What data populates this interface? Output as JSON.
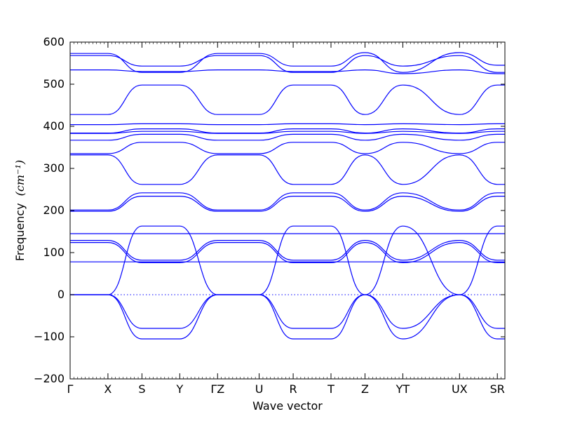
{
  "chart_data": {
    "type": "line",
    "title": "",
    "xlabel": "Wave vector",
    "ylabel": "Frequency",
    "ylabel_unit": "(cm⁻¹)",
    "ylim": [
      -200,
      600
    ],
    "yticks": [
      -200,
      -100,
      0,
      100,
      200,
      300,
      400,
      500,
      600
    ],
    "xlim": [
      0,
      11.5
    ],
    "xticks": [
      {
        "x": 0,
        "label": "Γ"
      },
      {
        "x": 1,
        "label": "X"
      },
      {
        "x": 1.9,
        "label": "S"
      },
      {
        "x": 2.9,
        "label": "Y"
      },
      {
        "x": 3.9,
        "label": "ΓZ"
      },
      {
        "x": 5.0,
        "label": "U"
      },
      {
        "x": 5.9,
        "label": "R"
      },
      {
        "x": 6.9,
        "label": "T"
      },
      {
        "x": 7.8,
        "label": "Z"
      },
      {
        "x": 8.8,
        "label": "YT"
      },
      {
        "x": 10.3,
        "label": "UX"
      },
      {
        "x": 11.3,
        "label": "SR"
      }
    ],
    "zero_line": 0,
    "color": "#0000ff",
    "series": [
      {
        "x": [
          0,
          1,
          1.9,
          2.9,
          3.9,
          5.0,
          5.9,
          6.9,
          7.8,
          8.8,
          10.3,
          11.3,
          11.5
        ],
        "values": [
          573,
          573,
          528,
          528,
          573,
          573,
          543,
          543,
          575,
          528,
          575,
          545,
          545
        ]
      },
      {
        "x": [
          0,
          1,
          1.9,
          2.9,
          3.9,
          5.0,
          5.9,
          6.9,
          7.8,
          8.8,
          10.3,
          11.3,
          11.5
        ],
        "values": [
          568,
          568,
          543,
          543,
          568,
          568,
          528,
          528,
          568,
          543,
          568,
          528,
          528
        ]
      },
      {
        "x": [
          0,
          1,
          1.9,
          2.9,
          3.9,
          5.0,
          5.9,
          6.9,
          7.8,
          8.8,
          10.3,
          11.3,
          11.5
        ],
        "values": [
          534,
          534,
          530,
          530,
          534,
          534,
          530,
          530,
          534,
          525,
          534,
          525,
          525
        ]
      },
      {
        "x": [
          0,
          1,
          1.9,
          2.9,
          3.9,
          5.0,
          5.9,
          6.9,
          7.8,
          8.8,
          10.3,
          11.3,
          11.5
        ],
        "values": [
          428,
          428,
          498,
          498,
          428,
          428,
          498,
          498,
          428,
          498,
          428,
          498,
          498
        ]
      },
      {
        "x": [
          0,
          1,
          1.9,
          2.9,
          3.9,
          5.0,
          5.9,
          6.9,
          7.8,
          8.8,
          10.3,
          11.3,
          11.5
        ],
        "values": [
          404,
          404,
          406,
          406,
          404,
          404,
          406,
          406,
          404,
          406,
          404,
          406,
          406
        ]
      },
      {
        "x": [
          0,
          1,
          1.9,
          2.9,
          3.9,
          5.0,
          5.9,
          6.9,
          7.8,
          8.8,
          10.3,
          11.3,
          11.5
        ],
        "values": [
          384,
          384,
          394,
          394,
          384,
          384,
          394,
          394,
          384,
          394,
          384,
          394,
          394
        ]
      },
      {
        "x": [
          0,
          1,
          1.9,
          2.9,
          3.9,
          5.0,
          5.9,
          6.9,
          7.8,
          8.8,
          10.3,
          11.3,
          11.5
        ],
        "values": [
          383,
          383,
          388,
          388,
          383,
          383,
          388,
          388,
          383,
          388,
          383,
          388,
          388
        ]
      },
      {
        "x": [
          0,
          1,
          1.9,
          2.9,
          3.9,
          5.0,
          5.9,
          6.9,
          7.8,
          8.8,
          10.3,
          11.3,
          11.5
        ],
        "values": [
          367,
          367,
          381,
          381,
          367,
          367,
          381,
          381,
          367,
          381,
          367,
          381,
          381
        ]
      },
      {
        "x": [
          0,
          1,
          1.9,
          2.9,
          3.9,
          5.0,
          5.9,
          6.9,
          7.8,
          8.8,
          10.3,
          11.3,
          11.5
        ],
        "values": [
          335,
          335,
          362,
          362,
          335,
          335,
          362,
          362,
          335,
          362,
          335,
          362,
          362
        ]
      },
      {
        "x": [
          0,
          1,
          1.9,
          2.9,
          3.9,
          5.0,
          5.9,
          6.9,
          7.8,
          8.8,
          10.3,
          11.3,
          11.5
        ],
        "values": [
          332,
          332,
          262,
          262,
          332,
          332,
          262,
          262,
          332,
          262,
          332,
          262,
          262
        ]
      },
      {
        "x": [
          0,
          1,
          1.9,
          2.9,
          3.9,
          5.0,
          5.9,
          6.9,
          7.8,
          8.8,
          10.3,
          11.3,
          11.5
        ],
        "values": [
          201,
          201,
          242,
          242,
          201,
          201,
          242,
          242,
          201,
          242,
          201,
          242,
          242
        ]
      },
      {
        "x": [
          0,
          1,
          1.9,
          2.9,
          3.9,
          5.0,
          5.9,
          6.9,
          7.8,
          8.8,
          10.3,
          11.3,
          11.5
        ],
        "values": [
          198,
          198,
          234,
          234,
          198,
          198,
          234,
          234,
          198,
          234,
          198,
          234,
          234
        ]
      },
      {
        "x": [
          0,
          1,
          1.9,
          2.9,
          3.9,
          5.0,
          5.9,
          6.9,
          7.8,
          8.8,
          10.3,
          11.3,
          11.5
        ],
        "values": [
          145,
          145,
          145,
          145,
          145,
          145,
          145,
          145,
          145,
          145,
          145,
          145,
          145
        ]
      },
      {
        "x": [
          0,
          1,
          1.9,
          2.9,
          3.9,
          5.0,
          5.9,
          6.9,
          7.8,
          8.8,
          10.3,
          11.3,
          11.5
        ],
        "values": [
          129,
          129,
          82,
          82,
          129,
          129,
          82,
          82,
          129,
          82,
          129,
          82,
          82
        ]
      },
      {
        "x": [
          0,
          1,
          1.9,
          2.9,
          3.9,
          5.0,
          5.9,
          6.9,
          7.8,
          8.8,
          10.3,
          11.3,
          11.5
        ],
        "values": [
          124,
          124,
          76,
          76,
          124,
          124,
          76,
          76,
          124,
          76,
          124,
          76,
          76
        ]
      },
      {
        "x": [
          0,
          1,
          1.9,
          2.9,
          3.9,
          5.0,
          5.9,
          6.9,
          7.8,
          8.8,
          10.3,
          11.3,
          11.5
        ],
        "values": [
          78,
          78,
          78,
          78,
          78,
          78,
          78,
          78,
          78,
          78,
          78,
          78,
          78
        ]
      },
      {
        "x": [
          0,
          1,
          1.9,
          2.9,
          3.9,
          5.0,
          5.9,
          6.9,
          7.8,
          8.8,
          10.3,
          11.3,
          11.5
        ],
        "values": [
          0,
          0,
          163,
          163,
          0,
          0,
          163,
          163,
          0,
          163,
          0,
          163,
          163
        ]
      },
      {
        "x": [
          0,
          1,
          1.9,
          2.9,
          3.9,
          5.0,
          5.9,
          6.9,
          7.8,
          8.8,
          10.3,
          11.3,
          11.5
        ],
        "values": [
          0,
          0,
          -80,
          -80,
          0,
          0,
          -80,
          -80,
          0,
          -80,
          0,
          -80,
          -80
        ]
      },
      {
        "x": [
          0,
          1,
          1.9,
          2.9,
          3.9,
          5.0,
          5.9,
          6.9,
          7.8,
          8.8,
          10.3,
          11.3,
          11.5
        ],
        "values": [
          0,
          0,
          -105,
          -105,
          0,
          0,
          -105,
          -105,
          0,
          -105,
          0,
          -105,
          -105
        ]
      }
    ]
  }
}
